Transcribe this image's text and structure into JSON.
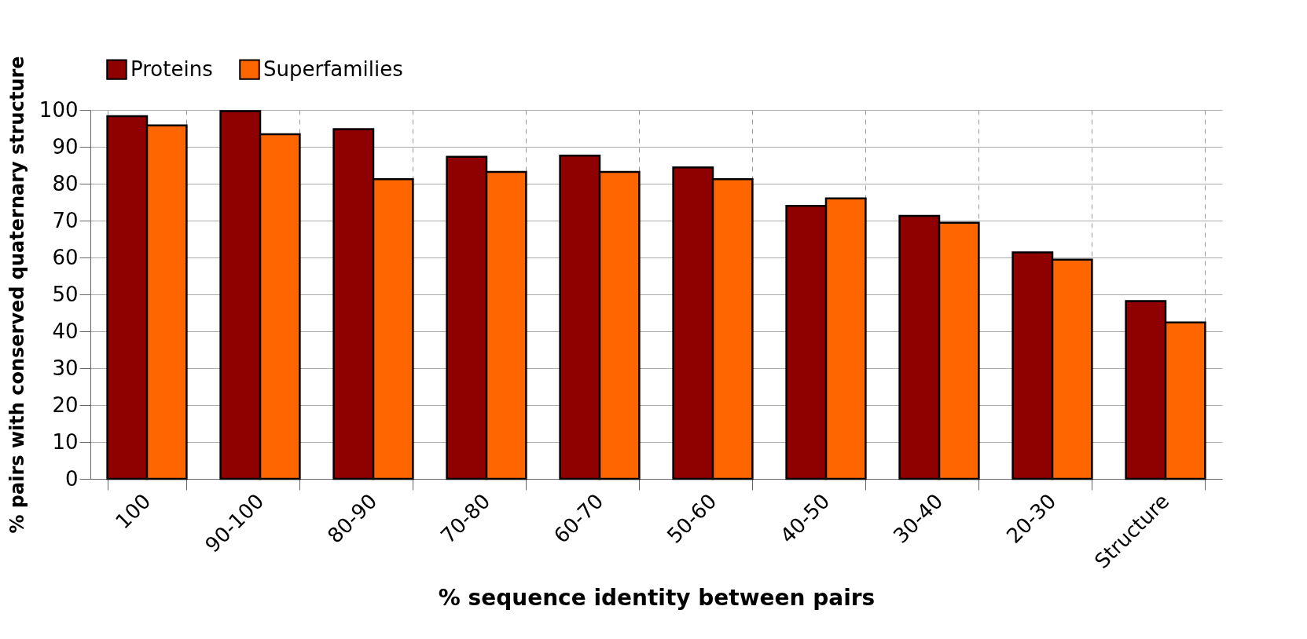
{
  "chart_data": {
    "type": "bar",
    "categories": [
      "100",
      "90-100",
      "80-90",
      "70-80",
      "60-70",
      "50-60",
      "40-50",
      "30-40",
      "20-30",
      "Structure"
    ],
    "series": [
      {
        "name": "Proteins",
        "color": "#8f0000",
        "values": [
          98.3,
          99.7,
          94.8,
          87.3,
          87.6,
          84.4,
          74.0,
          71.3,
          61.4,
          48.2
        ]
      },
      {
        "name": "Superfamilies",
        "color": "#ff6600",
        "values": [
          95.8,
          93.4,
          81.2,
          83.2,
          83.2,
          81.2,
          76.0,
          69.4,
          59.4,
          42.4
        ]
      }
    ],
    "xlabel": "% sequence identity between pairs",
    "ylabel": "% pairs with conserved quaternary structure",
    "ylim": [
      0,
      100
    ],
    "yticks": [
      0,
      10,
      20,
      30,
      40,
      50,
      60,
      70,
      80,
      90,
      100
    ],
    "grid": true,
    "legend": "top left"
  }
}
